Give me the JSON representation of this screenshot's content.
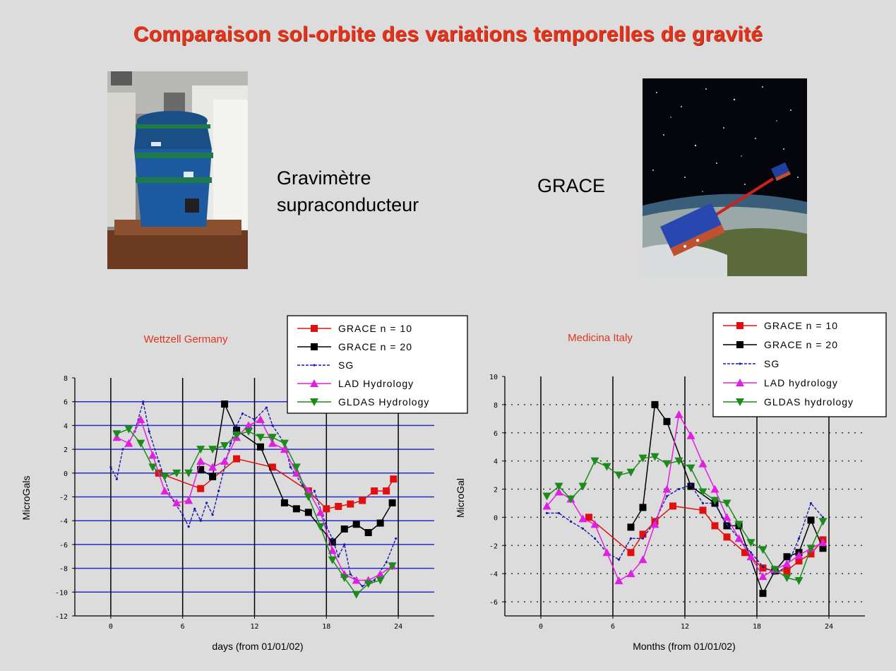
{
  "slide": {
    "title": "Comparaison sol-orbite des variations temporelles de gravité",
    "left_caption_line1": "Gravimètre",
    "left_caption_line2": "supraconducteur",
    "right_caption": "GRACE"
  },
  "chart_data": [
    {
      "type": "line",
      "title": "Wettzell Germany",
      "xlabel": "days (from 01/01/02)",
      "ylabel": "MicroGals",
      "xlim": [
        -3,
        27
      ],
      "ylim": [
        -12,
        8
      ],
      "xticks": [
        0,
        6,
        12,
        18,
        24
      ],
      "yticks": [
        8,
        6,
        4,
        2,
        0,
        -2,
        -4,
        -6,
        -8,
        -10,
        -12
      ],
      "grid": "horizontal blue lines every 2, vertical black lines at x ticks",
      "legend_position": "top-right",
      "series": [
        {
          "name": "GRACE n = 10",
          "color": "#e01010",
          "marker": "square",
          "x": [
            4,
            7.5,
            10.5,
            13.5,
            16.5,
            18,
            19,
            20,
            21,
            22,
            23,
            23.6
          ],
          "y": [
            0,
            -1.3,
            1.2,
            0.5,
            -1.5,
            -3,
            -2.8,
            -2.6,
            -2.3,
            -1.5,
            -1.5,
            -0.5
          ]
        },
        {
          "name": "GRACE n = 20",
          "color": "#000000",
          "marker": "square",
          "x": [
            7.5,
            8.5,
            9.5,
            10.5,
            12.5,
            14.5,
            15.5,
            16.5,
            18.5,
            19.5,
            20.5,
            21.5,
            22.5,
            23.5
          ],
          "y": [
            0.3,
            -0.3,
            5.8,
            3.6,
            2.2,
            -2.5,
            -3,
            -3.3,
            -5.8,
            -4.7,
            -4.3,
            -5,
            -4.2,
            -2.5
          ]
        },
        {
          "name": "SG",
          "color": "#1a1aa8",
          "marker": "dot",
          "x": [
            0,
            0.5,
            1,
            1.5,
            2,
            2.7,
            3.2,
            4,
            5,
            6,
            6.5,
            7,
            7.5,
            8,
            8.5,
            9,
            10,
            10.5,
            11,
            12,
            13,
            13.5,
            14.5,
            15,
            16,
            16.5,
            17,
            18,
            18.5,
            19,
            19.5,
            20,
            21,
            22,
            23,
            23.8
          ],
          "y": [
            0.5,
            -0.5,
            2,
            2.5,
            3.5,
            6,
            3.5,
            1,
            -2,
            -3.5,
            -4.5,
            -3,
            -4,
            -2.5,
            -3.5,
            -1.5,
            2.5,
            4,
            5,
            4.5,
            5.5,
            4,
            2.5,
            0.5,
            -1,
            -2,
            -1.5,
            -4.5,
            -5.5,
            -7,
            -6,
            -8.5,
            -9.5,
            -9,
            -7.5,
            -5.5
          ]
        },
        {
          "name": "LAD Hydrology",
          "color": "#e020e0",
          "marker": "triangle-up",
          "x": [
            0.5,
            1.5,
            2.5,
            3.5,
            4.5,
            5.5,
            6.5,
            7.5,
            8.5,
            9.5,
            10.5,
            11.5,
            12.5,
            13.5,
            14.5,
            15.5,
            16.5,
            17.5,
            18.5,
            19.5,
            20.5,
            21.5,
            22.5,
            23.5
          ],
          "y": [
            3,
            2.5,
            4.5,
            1.5,
            -1.5,
            -2.5,
            -2.3,
            1,
            0.5,
            1,
            3,
            4,
            4.5,
            2.5,
            2,
            0,
            -1.5,
            -3.3,
            -6.5,
            -8.5,
            -9,
            -9,
            -8.5,
            -7.8
          ]
        },
        {
          "name": "GLDAS Hydrology",
          "color": "#1c8a1c",
          "marker": "triangle-down",
          "x": [
            0.5,
            1.5,
            2.5,
            3.5,
            4.5,
            5.5,
            6.5,
            7.5,
            8.5,
            9.5,
            10.5,
            11.5,
            12.5,
            13.5,
            14.5,
            15.5,
            16.5,
            17.5,
            18.5,
            19.5,
            20.5,
            21.5,
            22.5,
            23.5
          ],
          "y": [
            3.3,
            3.7,
            2.5,
            0.5,
            -0.3,
            0,
            0,
            2,
            2,
            2.3,
            3.2,
            3.5,
            3,
            3,
            2.5,
            0.5,
            -2,
            -4.5,
            -7.3,
            -8.8,
            -10.2,
            -9.3,
            -9,
            -7.8
          ]
        }
      ]
    },
    {
      "type": "line",
      "title": "Medicina Italy",
      "xlabel": "Months (from 01/01/02)",
      "ylabel": "MicroGal",
      "xlim": [
        -3,
        27
      ],
      "ylim": [
        -7,
        10
      ],
      "xticks": [
        0,
        6,
        12,
        18,
        24
      ],
      "yticks": [
        10,
        8,
        6,
        4,
        2,
        0,
        -2,
        -4,
        -6
      ],
      "grid": "dotted horizontal lines every 2, vertical black lines at x ticks",
      "legend_position": "top-right",
      "series": [
        {
          "name": "GRACE n = 10",
          "color": "#e01010",
          "marker": "square",
          "x": [
            4,
            7.5,
            8.5,
            9.5,
            11,
            13.5,
            14.5,
            15.5,
            17,
            18.5,
            19.5,
            20.5,
            21.5,
            22.5,
            23.5
          ],
          "y": [
            0,
            -2.5,
            -1.2,
            -0.3,
            0.8,
            0.5,
            -0.6,
            -1.4,
            -2.5,
            -3.6,
            -3.8,
            -3.8,
            -3.1,
            -2.6,
            -1.6
          ]
        },
        {
          "name": "GRACE n = 20",
          "color": "#000000",
          "marker": "square",
          "x": [
            7.5,
            8.5,
            9.5,
            10.5,
            12.5,
            14.5,
            15.5,
            16.5,
            18.5,
            19.5,
            20.5,
            21.5,
            22.5,
            23.5
          ],
          "y": [
            -0.7,
            0.7,
            8,
            6.8,
            2.2,
            1,
            -0.6,
            -0.6,
            -5.4,
            -3.8,
            -2.8,
            -2.5,
            -0.2,
            -2.2
          ]
        },
        {
          "name": "SG",
          "color": "#1a1aa8",
          "marker": "dot",
          "x": [
            0.5,
            1.5,
            2.5,
            3.5,
            4.5,
            5.5,
            6.5,
            7.5,
            8.5,
            9.5,
            10.5,
            11.5,
            12.5,
            13.5,
            14.5,
            15.5,
            16.5,
            17.5,
            18.5,
            19.5,
            20.5,
            21.5,
            22.5,
            23.5
          ],
          "y": [
            0.3,
            0.3,
            -0.3,
            -0.8,
            -1.5,
            -2.5,
            -3,
            -1.5,
            -1.5,
            -0.3,
            1.5,
            2,
            2.3,
            1,
            1,
            -0.5,
            -1.5,
            -2.5,
            -3.5,
            -4,
            -3.5,
            -1.5,
            1,
            0
          ]
        },
        {
          "name": "LAD hydrology",
          "color": "#e020e0",
          "marker": "triangle-up",
          "x": [
            0.5,
            1.5,
            2.5,
            3.5,
            4.5,
            5.5,
            6.5,
            7.5,
            8.5,
            9.5,
            10.5,
            11.5,
            12.5,
            13.5,
            14.5,
            15.5,
            16.5,
            17.5,
            18.5,
            19.5,
            20.5,
            21.5,
            22.5,
            23.5
          ],
          "y": [
            0.8,
            1.8,
            1.3,
            -0.1,
            -0.5,
            -2.5,
            -4.5,
            -4,
            -3,
            -0.5,
            2,
            7.3,
            5.8,
            3.8,
            2,
            0,
            -1.5,
            -2.8,
            -4.2,
            -3.7,
            -3.3,
            -2.7,
            -2.2,
            -1.8
          ]
        },
        {
          "name": "GLDAS hydrology",
          "color": "#1c8a1c",
          "marker": "triangle-down",
          "x": [
            0.5,
            1.5,
            2.5,
            3.5,
            4.5,
            5.5,
            6.5,
            7.5,
            8.5,
            9.5,
            10.5,
            11.5,
            12.5,
            13.5,
            14.5,
            15.5,
            16.5,
            17.5,
            18.5,
            19.5,
            20.5,
            21.5,
            22.5,
            23.5
          ],
          "y": [
            1.5,
            2.2,
            1.3,
            2.2,
            4,
            3.6,
            3,
            3.2,
            4.2,
            4.3,
            3.8,
            4,
            3.5,
            1.8,
            1.2,
            1,
            -0.5,
            -1.8,
            -2.3,
            -3.7,
            -4.3,
            -4.5,
            -2.2,
            -0.3
          ]
        }
      ]
    }
  ]
}
